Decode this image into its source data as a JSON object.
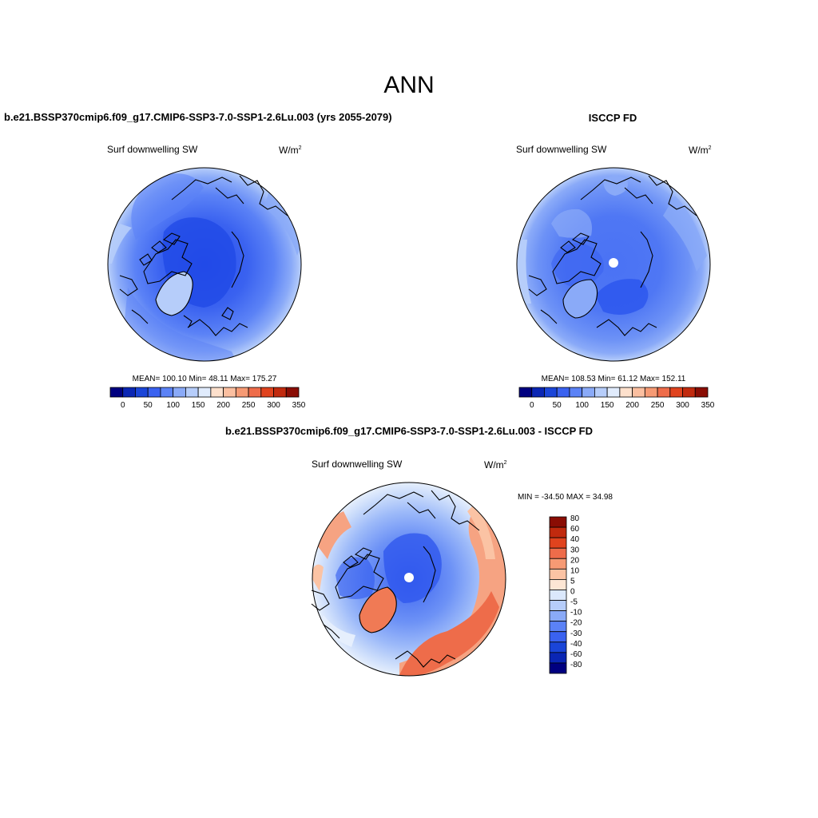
{
  "title": "ANN",
  "panels": [
    {
      "id": "model",
      "title": "b.e21.BSSP370cmip6.f09_g17.CMIP6-SSP3-7.0-SSP1-2.6Lu.003 (yrs 2055-2079)",
      "variable": "Surf downwelling SW",
      "units_base": "W/m",
      "units_exp": "2",
      "stats_text": "MEAN= 100.10  Min=  48.11  Max= 175.27",
      "mean": 100.1,
      "min": 48.11,
      "max": 175.27,
      "missing_pole": false
    },
    {
      "id": "obs",
      "title": "ISCCP FD",
      "variable": "Surf downwelling SW",
      "units_base": "W/m",
      "units_exp": "2",
      "stats_text": "MEAN= 108.53  Min=  61.12  Max= 152.11",
      "mean": 108.53,
      "min": 61.12,
      "max": 152.11,
      "missing_pole": true
    },
    {
      "id": "diff",
      "title": "b.e21.BSSP370cmip6.f09_g17.CMIP6-SSP3-7.0-SSP1-2.6Lu.003 - ISCCP FD",
      "variable": "Surf downwelling SW",
      "units_base": "W/m",
      "units_exp": "2",
      "stats_text": "MIN = -34.50 MAX =  34.98",
      "min": -34.5,
      "max": 34.98,
      "missing_pole": true
    }
  ],
  "colorbar_abs": {
    "colors": [
      "#000080",
      "#0a26b4",
      "#1a45d8",
      "#3a62f0",
      "#5b82f6",
      "#8aaaf8",
      "#b6cdfa",
      "#e0ebfc",
      "#fde0cc",
      "#fbbfa0",
      "#f69a74",
      "#ee6c4a",
      "#e0431e",
      "#c12a0e",
      "#8a0d04"
    ],
    "labels": [
      "0",
      "50",
      "100",
      "150",
      "200",
      "250",
      "300",
      "350"
    ]
  },
  "colorbar_diff": {
    "colors": [
      "#000080",
      "#0a26b4",
      "#1a45d8",
      "#3a62f0",
      "#5b82f6",
      "#8aaaf8",
      "#b6cdfa",
      "#dbe8fc",
      "#fde6d4",
      "#fbc3a4",
      "#f69a74",
      "#ee6c4a",
      "#e0431e",
      "#c12a0e",
      "#8a0d04"
    ],
    "labels": [
      "80",
      "60",
      "40",
      "30",
      "20",
      "10",
      "5",
      "0",
      "-5",
      "-10",
      "-20",
      "-30",
      "-40",
      "-60",
      "-80"
    ]
  }
}
